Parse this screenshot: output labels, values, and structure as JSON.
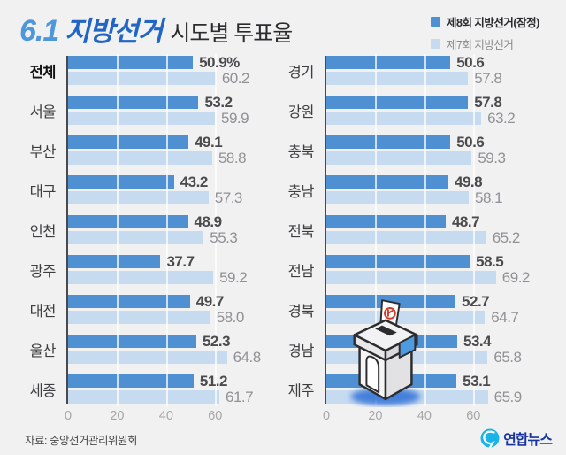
{
  "title": {
    "number": "6.1",
    "brand": "지방선거",
    "subtitle": "시도별 투표율"
  },
  "legend": {
    "items": [
      {
        "label": "제8회 지방선거(잠정)",
        "color": "#4f90d2",
        "bold": true
      },
      {
        "label": "제7회 지방선거",
        "color": "#c6dbf0",
        "bold": false
      }
    ]
  },
  "footer": {
    "source": "자료: 중앙선거관리위원회",
    "logo_text": "연합뉴스"
  },
  "colors": {
    "background": "#f1f1f2",
    "bar_current": "#4f90d2",
    "bar_previous": "#c6dbf0",
    "axis_line": "#4a4a4c",
    "value_current_text": "#4b4b4d",
    "value_previous_text": "#919195",
    "title_number": "#4f97dc",
    "title_brand": "#2166c4",
    "logo_navy": "#1733a1",
    "logo_cyan": "#1ab3e8"
  },
  "chart_data": {
    "type": "bar",
    "orientation": "horizontal",
    "title": "6.1 지방선거 시도별 투표율",
    "series": [
      "제8회 지방선거(잠정)",
      "제7회 지방선거"
    ],
    "xlim": [
      0,
      70
    ],
    "ticks": [
      0,
      20,
      40,
      60
    ],
    "grid": true,
    "legend_position": "top-right",
    "panels": [
      {
        "rows": [
          {
            "label": "전체",
            "current": 50.9,
            "previous": 60.2,
            "current_text": "50.9%",
            "previous_text": "60.2",
            "emphasis": true
          },
          {
            "label": "서울",
            "current": 53.2,
            "previous": 59.9
          },
          {
            "label": "부산",
            "current": 49.1,
            "previous": 58.8
          },
          {
            "label": "대구",
            "current": 43.2,
            "previous": 57.3
          },
          {
            "label": "인천",
            "current": 48.9,
            "previous": 55.3
          },
          {
            "label": "광주",
            "current": 37.7,
            "previous": 59.2
          },
          {
            "label": "대전",
            "current": 49.7,
            "previous": 58.0
          },
          {
            "label": "울산",
            "current": 52.3,
            "previous": 64.8
          },
          {
            "label": "세종",
            "current": 51.2,
            "previous": 61.7
          }
        ]
      },
      {
        "rows": [
          {
            "label": "경기",
            "current": 50.6,
            "previous": 57.8
          },
          {
            "label": "강원",
            "current": 57.8,
            "previous": 63.2
          },
          {
            "label": "충북",
            "current": 50.6,
            "previous": 59.3
          },
          {
            "label": "충남",
            "current": 49.8,
            "previous": 58.1
          },
          {
            "label": "전북",
            "current": 48.7,
            "previous": 65.2
          },
          {
            "label": "전남",
            "current": 58.5,
            "previous": 69.2
          },
          {
            "label": "경북",
            "current": 52.7,
            "previous": 64.7
          },
          {
            "label": "경남",
            "current": 53.4,
            "previous": 65.8
          },
          {
            "label": "제주",
            "current": 53.1,
            "previous": 65.9
          }
        ]
      }
    ]
  }
}
